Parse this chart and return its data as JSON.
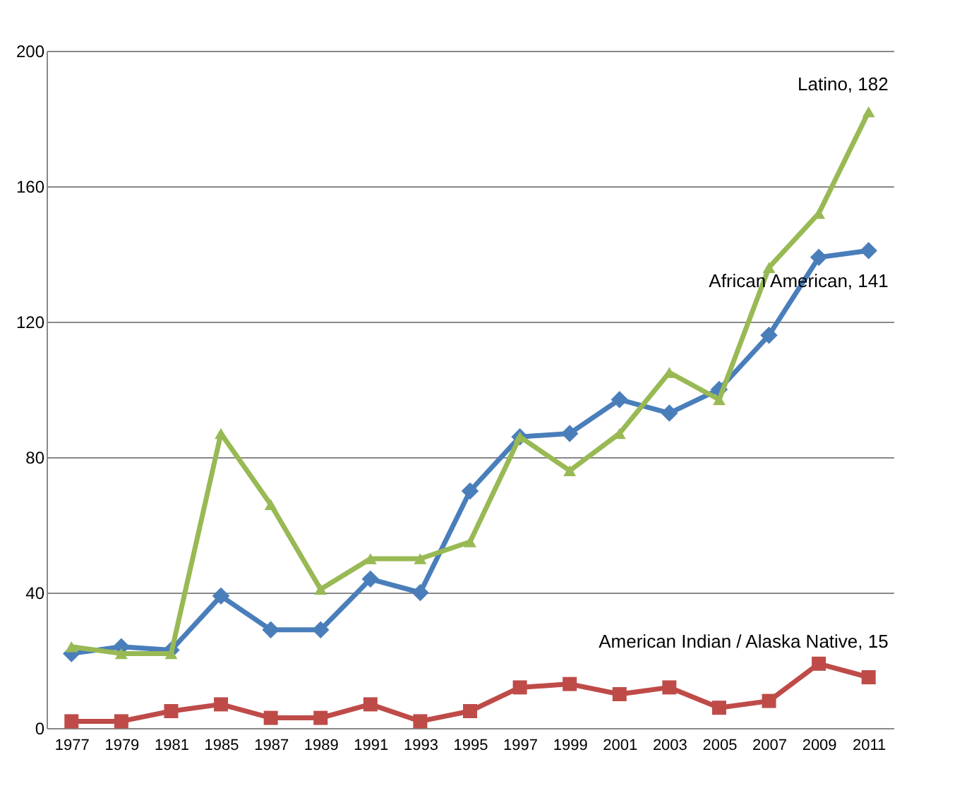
{
  "chart_data": {
    "type": "line",
    "categories": [
      "1977",
      "1979",
      "1981",
      "1985",
      "1987",
      "1989",
      "1991",
      "1993",
      "1995",
      "1997",
      "1999",
      "2001",
      "2003",
      "2005",
      "2007",
      "2009",
      "2011"
    ],
    "series": [
      {
        "color": "#4a7ebb",
        "marker": "diamond",
        "values": [
          22,
          24,
          23,
          39,
          29,
          29,
          44,
          40,
          70,
          86,
          87,
          97,
          93,
          100,
          116,
          139,
          141
        ]
      },
      {
        "color": "#be4b48",
        "marker": "square",
        "values": [
          2,
          2,
          5,
          7,
          3,
          3,
          7,
          2,
          5,
          12,
          13,
          10,
          12,
          6,
          8,
          19,
          15
        ]
      },
      {
        "color": "#98b954",
        "marker": "triangle",
        "values": [
          24,
          22,
          22,
          87,
          66,
          41,
          50,
          50,
          55,
          86,
          76,
          87,
          105,
          97,
          136,
          152,
          182
        ]
      }
    ],
    "ylim": [
      0,
      200
    ],
    "yticks": [
      0,
      40,
      80,
      120,
      160,
      200
    ],
    "grid": "y",
    "annotations": [
      {
        "text": "Latino, 182",
        "x": "2011",
        "y": 182
      },
      {
        "text": "African American, 141",
        "x": "2011",
        "y": 141
      },
      {
        "text": "American Indian / Alaska Native, 15",
        "x": "2011",
        "y": 15
      }
    ]
  }
}
